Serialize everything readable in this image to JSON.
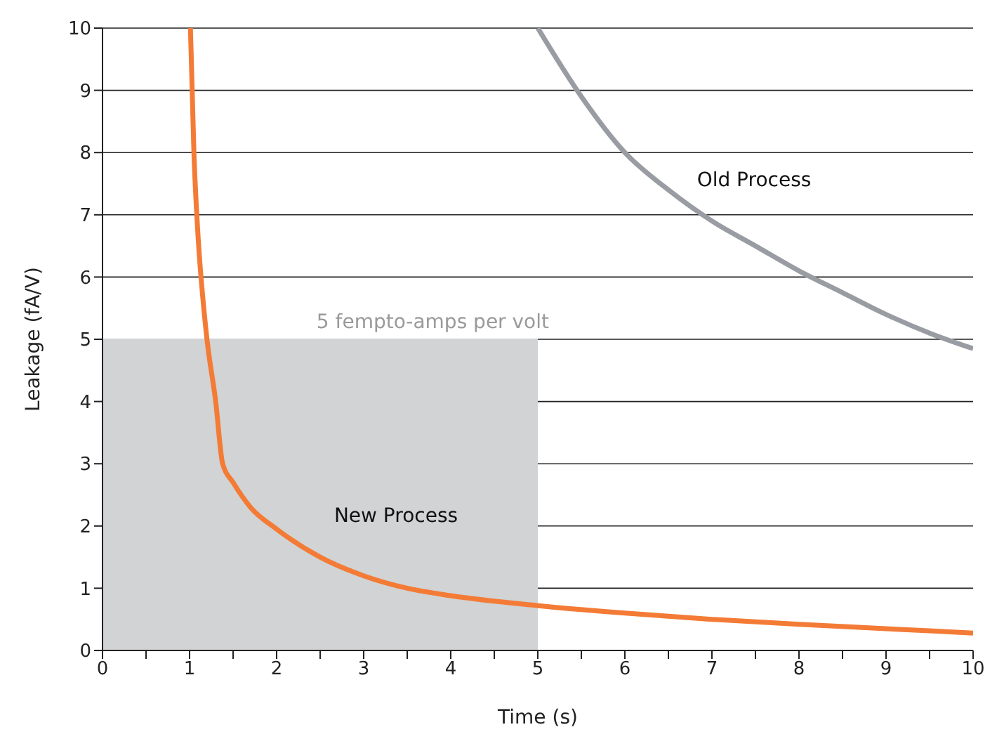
{
  "chart_data": {
    "type": "line",
    "xlabel": "Time (s)",
    "ylabel": "Leakage (fA/V)",
    "xlim": [
      0,
      10
    ],
    "ylim": [
      0,
      10
    ],
    "xticks": [
      0,
      {
        "value": 0.5,
        "label": null
      },
      1,
      {
        "value": 1.5,
        "label": null
      },
      2,
      {
        "value": 2.5,
        "label": null
      },
      3,
      {
        "value": 3.5,
        "label": null
      },
      4,
      {
        "value": 4.5,
        "label": null
      },
      5,
      {
        "value": 5.5,
        "label": null
      },
      6,
      {
        "value": 6.5,
        "label": null
      },
      7,
      {
        "value": 7.5,
        "label": null
      },
      8,
      {
        "value": 8.5,
        "label": null
      },
      9,
      {
        "value": 9.5,
        "label": null
      },
      10
    ],
    "yticks": [
      0,
      1,
      2,
      3,
      4,
      5,
      6,
      7,
      8,
      9,
      10
    ],
    "grid": "y",
    "ref_lines": [
      {
        "axis": "y",
        "value": 5,
        "label": null,
        "color": "#d1d3d4"
      }
    ],
    "marker": "none",
    "line_style": "solid",
    "bands": [
      {
        "axis": "x",
        "from": 0,
        "to": 5,
        "label": "5 fempto-amps per volt",
        "color": "#d1d3d4"
      }
    ],
    "series": [
      {
        "name": "New Process",
        "color": "#f47b36",
        "x": [
          1.01,
          1.05,
          1.1,
          1.15,
          1.2,
          1.3,
          1.38,
          1.5,
          1.7,
          2,
          2.5,
          3,
          3.5,
          4,
          5,
          6,
          7,
          8,
          9,
          10
        ],
        "values": [
          10,
          8,
          6.6,
          5.7,
          5,
          4,
          3,
          2.7,
          2.3,
          1.95,
          1.5,
          1.2,
          1.0,
          0.88,
          0.72,
          0.6,
          0.5,
          0.42,
          0.35,
          0.28
        ]
      },
      {
        "name": "Old Process",
        "color": "#999da3",
        "x": [
          5,
          5.5,
          6,
          6.5,
          7,
          7.5,
          8,
          8.5,
          9,
          9.5,
          10
        ],
        "values": [
          10,
          8.9,
          8.0,
          7.4,
          6.9,
          6.5,
          6.1,
          5.75,
          5.4,
          5.1,
          4.85
        ]
      }
    ]
  }
}
